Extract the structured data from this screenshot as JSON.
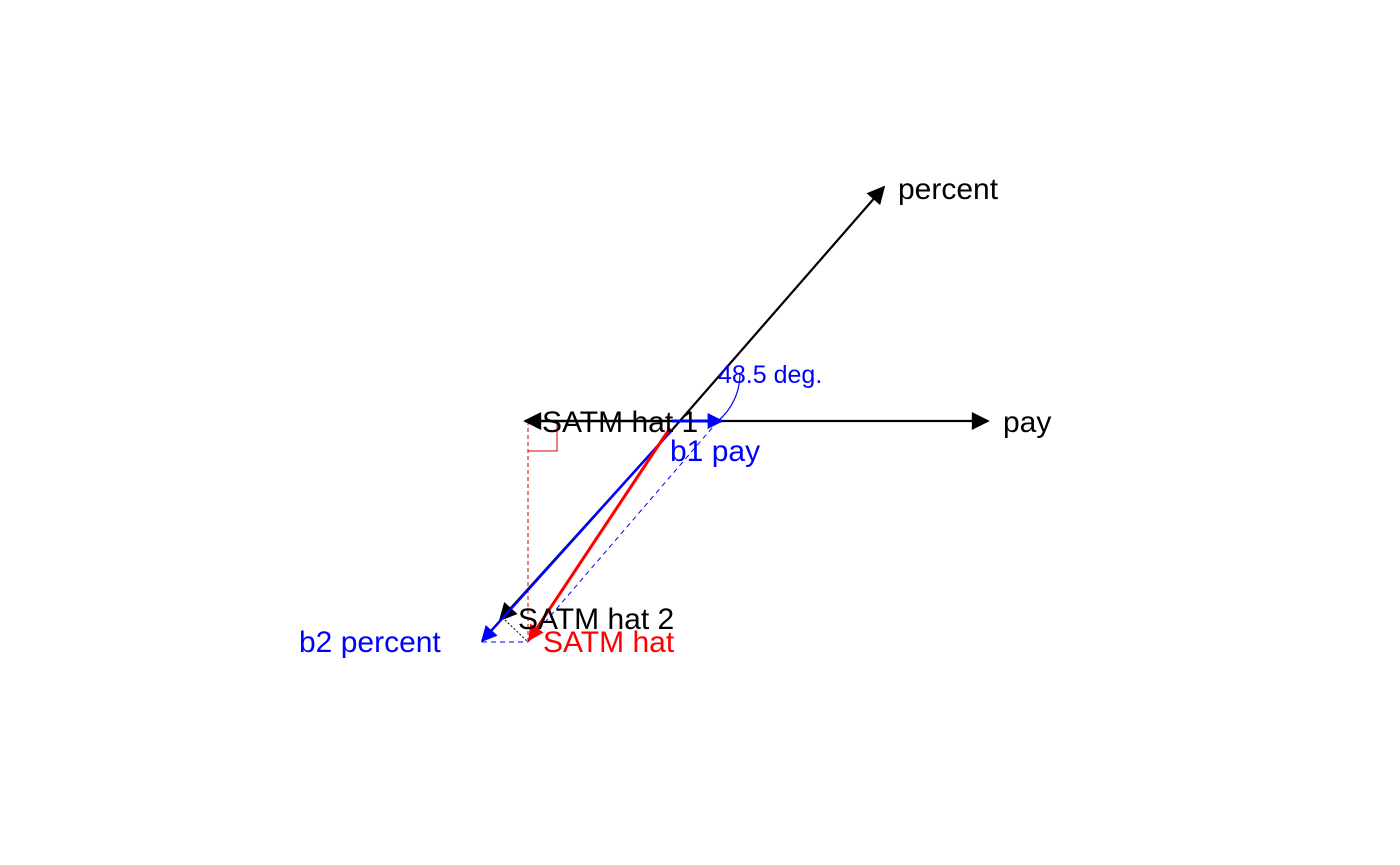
{
  "colors": {
    "black": "#000000",
    "blue": "#0000ff",
    "red": "#ff0000",
    "perp_red": "#cc0000"
  },
  "labels": {
    "percent": "percent",
    "pay": "pay",
    "angle": "48.5 deg.",
    "satm_hat_1": "SATM hat 1",
    "b1_pay": "b1 pay",
    "satm_hat_2": "SATM hat 2",
    "b2_percent": "b2 percent",
    "satm_hat": "SATM hat"
  }
}
